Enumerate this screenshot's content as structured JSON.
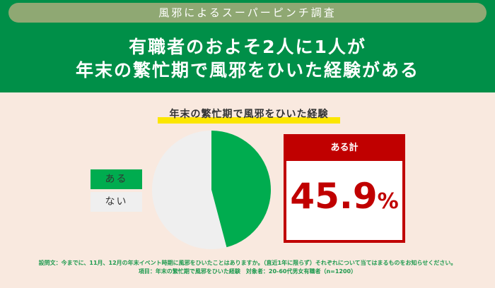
{
  "header": {
    "survey_label": "風邪によるスーパーピンチ調査",
    "headline_line1": "有職者のおよそ2人に1人が",
    "headline_line2": "年末の繁忙期で風邪をひいた経験がある"
  },
  "chart_data": {
    "type": "pie",
    "title": "年末の繁忙期で風邪をひいた経験",
    "categories": [
      "ある",
      "ない"
    ],
    "values": [
      45.9,
      54.1
    ],
    "colors": [
      "#00ac4f",
      "#efefef"
    ],
    "legend": "left"
  },
  "summary": {
    "label": "ある計",
    "value": "45.9",
    "unit": "%"
  },
  "footnote": {
    "line1": "設問文：今までに、11月、12月の年末イベント時期に風邪をひいたことはありますか。（直近1年に限らず）それぞれについて当てはまるものをお知らせください。",
    "line2": "項目：年末の繁忙期で風邪をひいた経験　対象者：20-60代男女有職者（n=1200）"
  }
}
